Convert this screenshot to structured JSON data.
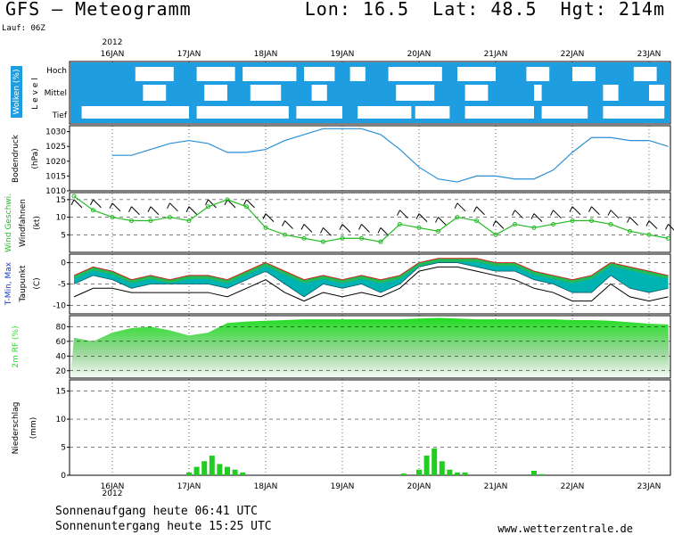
{
  "header": {
    "title": "GFS — Meteogramm",
    "location": "Lon: 16.5  Lat: 48.5  Hgt: 214m",
    "run": "Lauf: 06Z"
  },
  "footer": {
    "sunrise": "Sonnenaufgang heute 06:41 UTC",
    "sunset": "Sonnenuntergang heute 15:25 UTC",
    "source": "www.wetterzentrale.de"
  },
  "colors": {
    "cloud_sky": "#1e9ee0",
    "pressure_line": "#2a8fd6",
    "wind_line": "#22bb22",
    "temp_fill": "#00b3b3",
    "dew_fill": "#22bb55",
    "humidity_fill": "#22dd22",
    "precip_bar": "#22cc22",
    "max_line": "#cc2222",
    "axis": "#000000"
  },
  "chart_data": {
    "x_axis": {
      "top_year": "2012",
      "bottom_year": "2012",
      "dates": [
        "16JAN",
        "17JAN",
        "18JAN",
        "19JAN",
        "20JAN",
        "21JAN",
        "22JAN",
        "23JAN"
      ]
    },
    "panels": [
      {
        "id": "clouds",
        "type": "heatmap",
        "ylabel": "Wolken (%)",
        "ylabel2": "L e v e l",
        "levels": [
          "Hoch",
          "Mittel",
          "Tief"
        ],
        "note": "white = cloud, blue = clear sky"
      },
      {
        "id": "pressure",
        "type": "line",
        "ylabel": "Bodendruck",
        "ylabel2": "(hPa)",
        "ylim": [
          1010,
          1032
        ],
        "yticks": [
          1010,
          1015,
          1020,
          1025,
          1030
        ],
        "x_days": [
          0,
          0.25,
          0.5,
          0.75,
          1,
          1.25,
          1.5,
          1.75,
          2,
          2.25,
          2.5,
          2.75,
          3,
          3.25,
          3.5,
          3.75,
          4,
          4.25,
          4.5,
          4.75,
          5,
          5.25,
          5.5,
          5.75,
          6,
          6.25,
          6.5,
          6.75,
          7,
          7.25
        ],
        "values": [
          1022,
          1022,
          1024,
          1026,
          1027,
          1026,
          1023,
          1023,
          1024,
          1027,
          1029,
          1031,
          1031,
          1031,
          1029,
          1024,
          1018,
          1014,
          1013,
          1015,
          1015,
          1014,
          1014,
          1017,
          1023,
          1028,
          1028,
          1027,
          1027,
          1025
        ]
      },
      {
        "id": "wind",
        "type": "line",
        "ylabel": "Wind Geschwi.",
        "ylabel2": "Windfahnen",
        "ylabel3": "(kt)",
        "ylim": [
          0,
          17
        ],
        "yticks": [
          5,
          10,
          15
        ],
        "x_days": [
          -0.5,
          -0.25,
          0,
          0.25,
          0.5,
          0.75,
          1,
          1.25,
          1.5,
          1.75,
          2,
          2.25,
          2.5,
          2.75,
          3,
          3.25,
          3.5,
          3.75,
          4,
          4.25,
          4.5,
          4.75,
          5,
          5.25,
          5.5,
          5.75,
          6,
          6.25,
          6.5,
          6.75,
          7,
          7.25
        ],
        "values": [
          16,
          12,
          10,
          9,
          9,
          10,
          9,
          13,
          15,
          13,
          7,
          5,
          4,
          3,
          4,
          4,
          3,
          8,
          7,
          6,
          10,
          9,
          5,
          8,
          7,
          8,
          9,
          9,
          8,
          6,
          5,
          4
        ]
      },
      {
        "id": "temperature",
        "type": "area",
        "ylabel": "T-Min, Max",
        "ylabel2": "Taupunkt",
        "ylabel3": "(C)",
        "ylim": [
          -12,
          2
        ],
        "yticks": [
          -10,
          -5,
          0
        ],
        "x_days": [
          -0.5,
          -0.25,
          0,
          0.25,
          0.5,
          0.75,
          1,
          1.25,
          1.5,
          1.75,
          2,
          2.25,
          2.5,
          2.75,
          3,
          3.25,
          3.5,
          3.75,
          4,
          4.25,
          4.5,
          4.75,
          5,
          5.25,
          5.5,
          5.75,
          6,
          6.25,
          6.5,
          6.75,
          7,
          7.25
        ],
        "series": [
          {
            "name": "T-Max",
            "values": [
              -3,
              -1,
              -2,
              -4,
              -3,
              -4,
              -3,
              -3,
              -4,
              -2,
              0,
              -2,
              -4,
              -3,
              -4,
              -3,
              -4,
              -3,
              0,
              1,
              1,
              1,
              0,
              0,
              -2,
              -3,
              -4,
              -3,
              0,
              -1,
              -2,
              -3
            ]
          },
          {
            "name": "T-Min",
            "values": [
              -5,
              -3,
              -4,
              -6,
              -5,
              -5,
              -5,
              -5,
              -6,
              -4,
              -2,
              -5,
              -8,
              -5,
              -6,
              -5,
              -7,
              -5,
              -1,
              0,
              0,
              -1,
              -2,
              -2,
              -4,
              -5,
              -7,
              -7,
              -3,
              -6,
              -7,
              -6
            ]
          },
          {
            "name": "Taupunkt",
            "values": [
              -8,
              -6,
              -6,
              -7,
              -7,
              -7,
              -7,
              -7,
              -8,
              -6,
              -4,
              -7,
              -9,
              -7,
              -8,
              -7,
              -8,
              -6,
              -2,
              -1,
              -1,
              -2,
              -3,
              -4,
              -6,
              -7,
              -9,
              -9,
              -5,
              -8,
              -9,
              -8
            ]
          }
        ]
      },
      {
        "id": "humidity",
        "type": "area",
        "ylabel": "2m RF (%)",
        "ylim": [
          10,
          95
        ],
        "yticks": [
          20,
          40,
          60,
          80
        ],
        "x_days": [
          -0.5,
          -0.25,
          0,
          0.25,
          0.5,
          0.75,
          1,
          1.25,
          1.5,
          1.75,
          2,
          2.25,
          2.5,
          2.75,
          3,
          3.25,
          3.5,
          3.75,
          4,
          4.25,
          4.5,
          4.75,
          5,
          5.25,
          5.5,
          5.75,
          6,
          6.25,
          6.5,
          6.75,
          7,
          7.25
        ],
        "values": [
          65,
          60,
          72,
          78,
          80,
          75,
          68,
          72,
          85,
          87,
          88,
          89,
          90,
          90,
          90,
          90,
          90,
          90,
          91,
          92,
          91,
          90,
          90,
          90,
          90,
          90,
          89,
          89,
          88,
          86,
          84,
          83
        ]
      },
      {
        "id": "precipitation",
        "type": "bar",
        "ylabel": "Niederschlag",
        "ylabel2": "(mm)",
        "ylim": [
          0,
          17
        ],
        "yticks": [
          0,
          5,
          10,
          15
        ],
        "x_days": [
          1.0,
          1.1,
          1.2,
          1.3,
          1.4,
          1.5,
          1.6,
          1.7,
          3.8,
          4.0,
          4.1,
          4.2,
          4.3,
          4.4,
          4.5,
          4.6,
          5.5,
          5.6
        ],
        "values": [
          0.5,
          1.5,
          2.5,
          3.5,
          2,
          1.5,
          1,
          0.5,
          0.3,
          1,
          3.5,
          4.8,
          2.5,
          1,
          0.5,
          0.5,
          0.8,
          0.2
        ]
      }
    ]
  }
}
